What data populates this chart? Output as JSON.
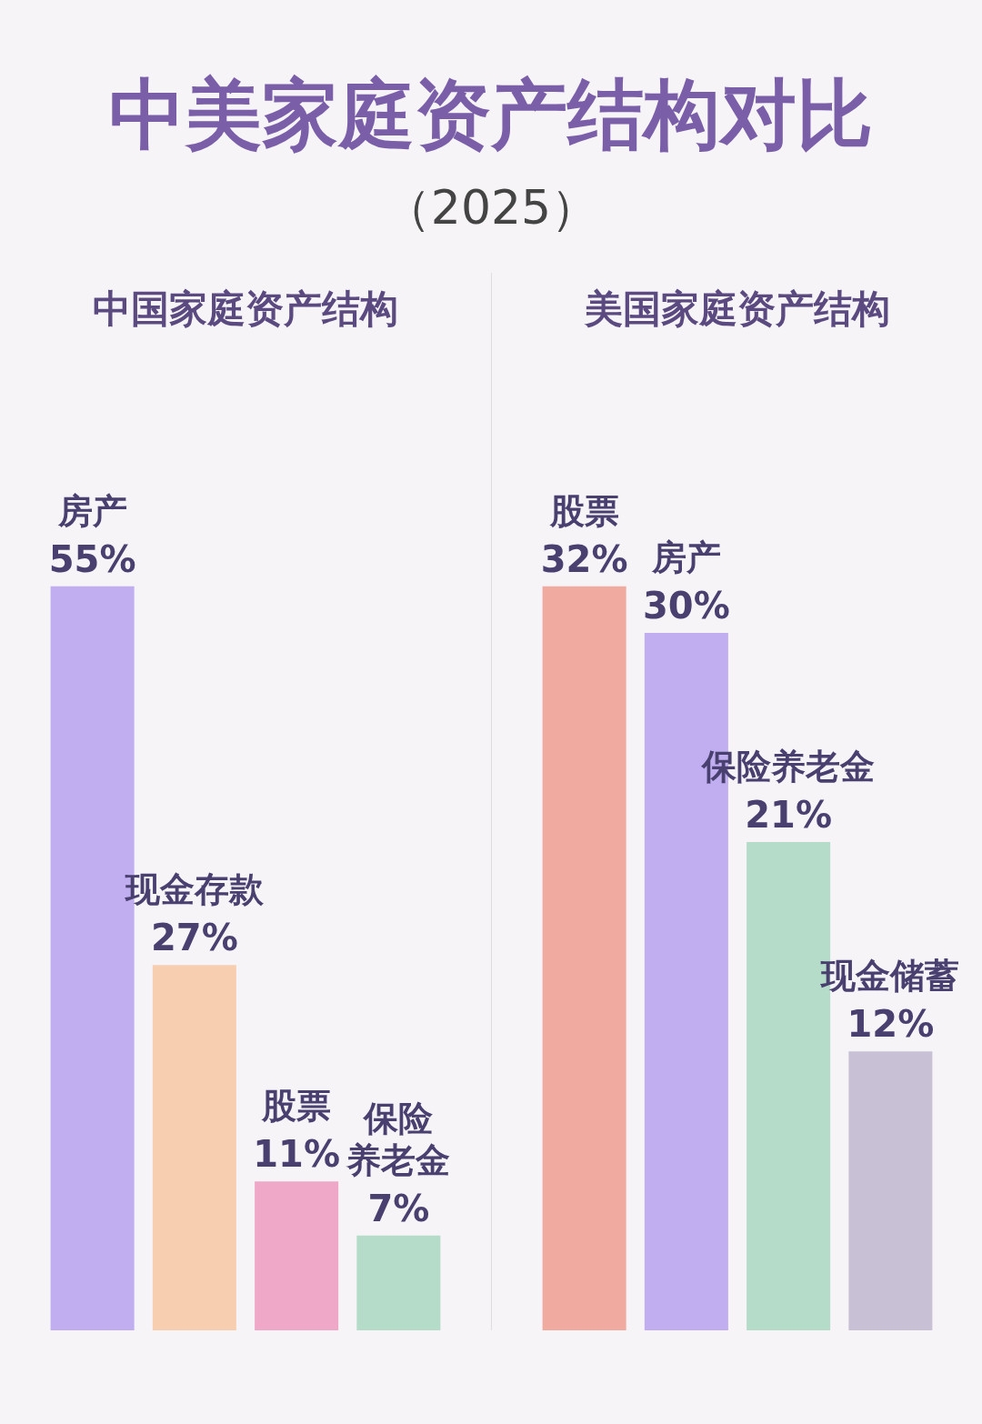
{
  "chart_data": [
    {
      "type": "other",
      "title": "中美家庭资产结构对比",
      "subtitle": "（2025）"
    },
    {
      "type": "bar",
      "title": "中国家庭资产结构",
      "categories": [
        "房产",
        "现金存款",
        "股票",
        "保险养老金"
      ],
      "values": [
        55,
        27,
        11,
        7
      ],
      "value_labels": [
        "55%",
        "27%",
        "11%",
        "7%"
      ],
      "colors": [
        "#c0aef0",
        "#f7cfb0",
        "#f0a8c8",
        "#b4dcc8"
      ]
    },
    {
      "type": "bar",
      "title": "美国家庭资产结构",
      "categories": [
        "股票",
        "房产",
        "保险养老金",
        "现金储蓄"
      ],
      "values": [
        32,
        30,
        21,
        12
      ],
      "value_labels": [
        "32%",
        "30%",
        "21%",
        "12%"
      ],
      "colors": [
        "#f0aaa0",
        "#c0aef0",
        "#b4dcc8",
        "#c8c0d4"
      ]
    }
  ]
}
